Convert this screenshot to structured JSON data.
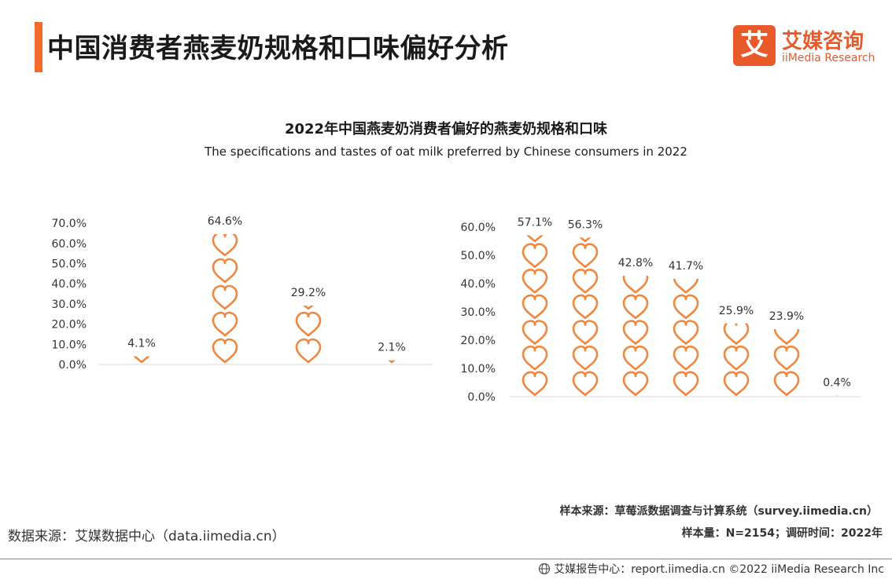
{
  "header": {
    "title": "中国消费者燕麦奶规格和口味偏好分析",
    "logo_mark": "艾",
    "logo_cn": "艾媒咨询",
    "logo_en": "iiMedia Research"
  },
  "chart_title": "2022年中国燕麦奶消费者偏好的燕麦奶规格和口味",
  "chart_subtitle": "The specifications and tastes of oat milk preferred by Chinese consumers in 2022",
  "chart_data": [
    {
      "type": "bar",
      "style": "pictorial-hearts",
      "title": "",
      "categories": [
        "",
        "",
        "",
        ""
      ],
      "values": [
        4.1,
        64.6,
        29.2,
        2.1
      ],
      "value_labels": [
        "4.1%",
        "64.6%",
        "29.2%",
        "2.1%"
      ],
      "yticks": [
        "0.0%",
        "10.0%",
        "20.0%",
        "30.0%",
        "40.0%",
        "50.0%",
        "60.0%",
        "70.0%"
      ],
      "ylim": [
        0,
        70
      ],
      "grid": false,
      "color": "#f0873f"
    },
    {
      "type": "bar",
      "style": "pictorial-hearts",
      "title": "",
      "categories": [
        "",
        "",
        "",
        "",
        "",
        "",
        ""
      ],
      "values": [
        57.1,
        56.3,
        42.8,
        41.7,
        25.9,
        23.9,
        0.4
      ],
      "value_labels": [
        "57.1%",
        "56.3%",
        "42.8%",
        "41.7%",
        "25.9%",
        "23.9%",
        "0.4%"
      ],
      "yticks": [
        "0.0%",
        "10.0%",
        "20.0%",
        "30.0%",
        "40.0%",
        "50.0%",
        "60.0%"
      ],
      "ylim": [
        0,
        60
      ],
      "grid": false,
      "color": "#f0873f"
    }
  ],
  "sources": {
    "sample_source": "样本来源：草莓派数据调查与计算系统（survey.iimedia.cn）",
    "sample_size": "样本量：N=2154；调研时间：2022年",
    "data_source": "数据来源：艾媒数据中心（data.iimedia.cn）"
  },
  "footer": {
    "text": "艾媒报告中心：report.iimedia.cn   ©2022  iiMedia Research  Inc"
  }
}
